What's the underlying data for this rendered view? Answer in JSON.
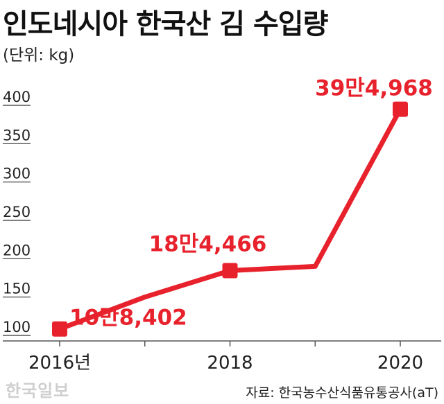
{
  "title": "인도네시아 한국산 김 수입량",
  "unit_label": "(단위: kg)",
  "source": "자료: 한국농수산식품유통공사(aT)",
  "logo_text": "한국일보",
  "colors": {
    "line": "#e8222c",
    "label": "#e8222c",
    "axis": "#555555"
  },
  "chart_data": {
    "type": "line",
    "title": "인도네시아 한국산 김 수입량",
    "xlabel": "",
    "ylabel": "(단위: kg)",
    "y_unit_scale": "thousand kg",
    "x": [
      2016,
      2017,
      2018,
      2019,
      2020
    ],
    "x_tick_values": [
      2016,
      2018,
      2020
    ],
    "x_tick_labels": [
      "2016년",
      "2018",
      "2020"
    ],
    "series": [
      {
        "values": [
          108.402,
          150,
          184.466,
          190,
          394.968
        ]
      }
    ],
    "y_ticks": [
      100,
      150,
      200,
      250,
      300,
      350,
      400
    ],
    "ylim": [
      100,
      400
    ],
    "point_markers": [
      2016,
      2018,
      2020
    ],
    "data_labels": [
      {
        "x": 2016,
        "text": "10만8,402"
      },
      {
        "x": 2018,
        "text": "18만4,466"
      },
      {
        "x": 2020,
        "text": "39만4,968"
      }
    ],
    "grid": false,
    "legend": "none"
  }
}
